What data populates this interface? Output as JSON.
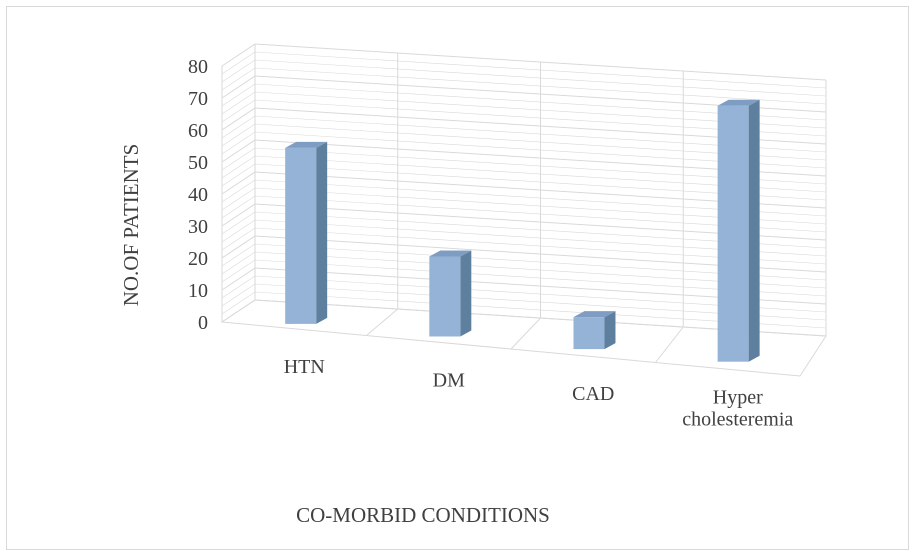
{
  "chart_data": {
    "type": "bar",
    "style": "3d-column",
    "categories": [
      "HTN",
      "DM",
      "CAD",
      "Hyper\ncholesteremia"
    ],
    "values": [
      55,
      25,
      10,
      80
    ],
    "xlabel": "CO-MORBID CONDITIONS",
    "ylabel": "NO.OF PATIENTS",
    "ylim": [
      0,
      80
    ],
    "yticks": [
      0,
      10,
      20,
      30,
      40,
      50,
      60,
      70,
      80
    ],
    "grid": true,
    "colors": {
      "bar_front": "#95b3d7",
      "bar_side": "#5f7f9f",
      "bar_top": "#7f9dc2",
      "grid": "#d9d9d9"
    }
  }
}
